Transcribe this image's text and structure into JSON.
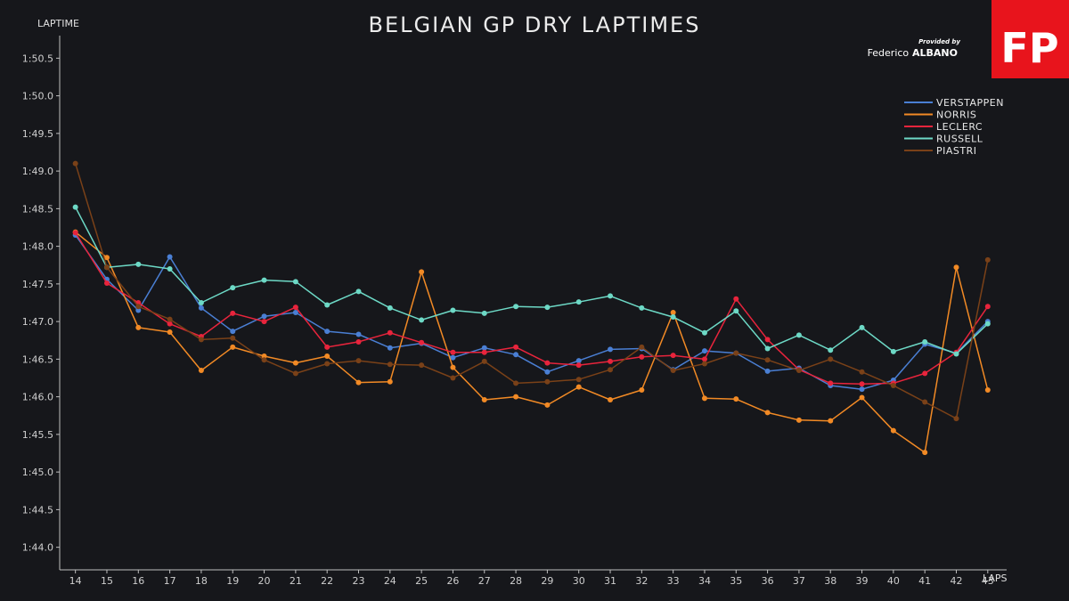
{
  "header": {
    "title": "BELGIAN GP DRY LAPTIMES",
    "credit_small": "Provided by",
    "credit_first": "Federico",
    "credit_last": "ALBANO",
    "logo_text": "FP",
    "logo_color": "#e8141c"
  },
  "chart_data": {
    "type": "line",
    "title": "BELGIAN GP DRY LAPTIMES",
    "xlabel": "LAPS",
    "ylabel": "LAPTIME",
    "x": [
      14,
      15,
      16,
      17,
      18,
      19,
      20,
      21,
      22,
      23,
      24,
      25,
      26,
      27,
      28,
      29,
      30,
      31,
      32,
      33,
      34,
      35,
      36,
      37,
      38,
      39,
      40,
      41,
      42,
      43
    ],
    "x_tick_labels": [
      "14",
      "15",
      "16",
      "17",
      "18",
      "19",
      "20",
      "21",
      "22",
      "23",
      "24",
      "25",
      "26",
      "27",
      "28",
      "29",
      "30",
      "31",
      "32",
      "33",
      "34",
      "35",
      "36",
      "37",
      "38",
      "39",
      "40",
      "41",
      "42",
      "43"
    ],
    "y_tick_values": [
      104.0,
      104.5,
      105.0,
      105.5,
      106.0,
      106.5,
      107.0,
      107.5,
      108.0,
      108.5,
      109.0,
      109.5,
      110.0,
      110.5
    ],
    "y_tick_labels": [
      "1:44.0",
      "1:44.5",
      "1:45.0",
      "1:45.5",
      "1:46.0",
      "1:46.5",
      "1:47.0",
      "1:47.5",
      "1:48.0",
      "1:48.5",
      "1:49.0",
      "1:49.5",
      "1:50.0",
      "1:50.5"
    ],
    "ylim": [
      103.7,
      110.8
    ],
    "xlim": [
      13.5,
      43.6
    ],
    "grid": false,
    "legend_position": "top-right",
    "series": [
      {
        "name": "VERSTAPPEN",
        "color": "#4a7fd4",
        "values": [
          108.15,
          107.56,
          107.15,
          107.86,
          107.18,
          106.87,
          107.07,
          107.12,
          106.87,
          106.83,
          106.65,
          106.71,
          106.52,
          106.65,
          106.56,
          106.33,
          106.48,
          106.63,
          106.64,
          106.36,
          106.61,
          106.58,
          106.34,
          106.38,
          106.15,
          106.1,
          106.22,
          106.7,
          106.58,
          107.0
        ]
      },
      {
        "name": "NORRIS",
        "color": "#f28a25",
        "values": [
          108.19,
          107.85,
          106.92,
          106.86,
          106.35,
          106.66,
          106.54,
          106.45,
          106.54,
          106.19,
          106.2,
          107.66,
          106.39,
          105.96,
          106.0,
          105.89,
          106.13,
          105.96,
          106.09,
          107.12,
          105.98,
          105.97,
          105.79,
          105.69,
          105.68,
          105.99,
          105.55,
          105.26,
          107.72,
          106.09
        ]
      },
      {
        "name": "LECLERC",
        "color": "#e8243c",
        "values": [
          108.18,
          107.51,
          107.25,
          106.97,
          106.8,
          107.11,
          107.0,
          107.19,
          106.66,
          106.73,
          106.85,
          106.72,
          106.59,
          106.59,
          106.66,
          106.45,
          106.42,
          106.47,
          106.53,
          106.55,
          106.5,
          107.3,
          106.76,
          106.36,
          106.18,
          106.17,
          106.18,
          106.31,
          106.59,
          107.2
        ]
      },
      {
        "name": "RUSSELL",
        "color": "#6dd9c6",
        "values": [
          108.52,
          107.72,
          107.76,
          107.7,
          107.25,
          107.45,
          107.55,
          107.53,
          107.22,
          107.4,
          107.18,
          107.02,
          107.15,
          107.11,
          107.2,
          107.19,
          107.26,
          107.34,
          107.18,
          107.06,
          106.85,
          107.14,
          106.64,
          106.82,
          106.62,
          106.92,
          106.6,
          106.73,
          106.57,
          106.97
        ]
      },
      {
        "name": "PIASTRI",
        "color": "#7a4118",
        "values": [
          109.1,
          107.72,
          107.2,
          107.03,
          106.76,
          106.78,
          106.49,
          106.31,
          106.44,
          106.48,
          106.43,
          106.42,
          106.25,
          106.47,
          106.18,
          106.2,
          106.23,
          106.36,
          106.66,
          106.35,
          106.44,
          106.58,
          106.49,
          106.35,
          106.5,
          106.33,
          106.15,
          105.93,
          105.71,
          107.82
        ]
      }
    ]
  }
}
